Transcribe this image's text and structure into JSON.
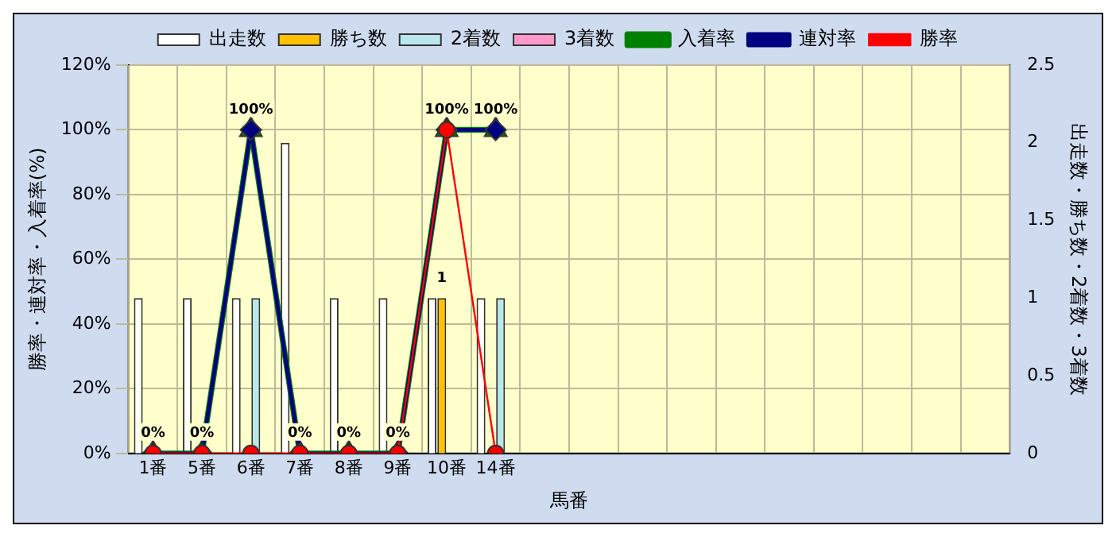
{
  "chart_data": {
    "type": "bar",
    "xlabel": "馬番",
    "ylabel": "勝率・連対率・入着率(%)",
    "y2label": "出走数・勝ち数・2着数・3着数",
    "categories": [
      "1番",
      "5番",
      "6番",
      "7番",
      "8番",
      "9番",
      "10番",
      "14番",
      null,
      null,
      null,
      null,
      null,
      null,
      null,
      null,
      null,
      null
    ],
    "ylim": [
      0,
      120
    ],
    "yticks": [
      {
        "value": 0,
        "label": "0%"
      },
      {
        "value": 20,
        "label": "20%"
      },
      {
        "value": 40,
        "label": "40%"
      },
      {
        "value": 60,
        "label": "60%"
      },
      {
        "value": 80,
        "label": "80%"
      },
      {
        "value": 100,
        "label": "100%"
      },
      {
        "value": 120,
        "label": "120%"
      }
    ],
    "y2lim": [
      0,
      2.5
    ],
    "y2ticks": [
      0,
      0.5,
      1,
      1.5,
      2,
      2.5
    ],
    "grid": true,
    "legend": "top",
    "series": [
      {
        "name": "出走数",
        "axis": "y2",
        "color": "#ffffff",
        "values": [
          1,
          1,
          1,
          2,
          1,
          1,
          1,
          1,
          null,
          null,
          null,
          null,
          null,
          null,
          null,
          null,
          null,
          null
        ]
      },
      {
        "name": "勝ち数",
        "axis": "y2",
        "color": "#ffc000",
        "values": [
          0,
          0,
          0,
          0,
          0,
          0,
          1,
          0,
          null,
          null,
          null,
          null,
          null,
          null,
          null,
          null,
          null,
          null
        ],
        "value_labels": [
          null,
          null,
          null,
          null,
          null,
          null,
          "1",
          null,
          null,
          null,
          null,
          null,
          null,
          null,
          null,
          null,
          null,
          null
        ]
      },
      {
        "name": "2着数",
        "axis": "y2",
        "color": "#b8e8ee",
        "values": [
          0,
          0,
          1,
          0,
          0,
          0,
          0,
          1,
          null,
          null,
          null,
          null,
          null,
          null,
          null,
          null,
          null,
          null
        ]
      },
      {
        "name": "3着数",
        "axis": "y2",
        "color": "#ff99cc",
        "values": [
          0,
          0,
          0,
          0,
          0,
          0,
          0,
          0,
          null,
          null,
          null,
          null,
          null,
          null,
          null,
          null,
          null,
          null
        ]
      },
      {
        "name": "入着率",
        "type": "line",
        "marker": "triangle",
        "color": "#008000",
        "values": [
          0,
          0,
          100,
          0,
          0,
          0,
          100,
          100,
          null,
          null,
          null,
          null,
          null,
          null,
          null,
          null,
          null,
          null
        ],
        "value_labels": [
          "0%",
          "0%",
          "100%",
          "0%",
          "0%",
          "0%",
          "100%",
          "100%",
          null,
          null,
          null,
          null,
          null,
          null,
          null,
          null,
          null,
          null
        ]
      },
      {
        "name": "連対率",
        "type": "line",
        "marker": "diamond",
        "color": "#000080",
        "values": [
          0,
          0,
          100,
          0,
          0,
          0,
          100,
          100,
          null,
          null,
          null,
          null,
          null,
          null,
          null,
          null,
          null,
          null
        ]
      },
      {
        "name": "勝率",
        "type": "line",
        "marker": "circle",
        "color": "#ff0000",
        "values": [
          0,
          0,
          0,
          0,
          0,
          0,
          100,
          0,
          null,
          null,
          null,
          null,
          null,
          null,
          null,
          null,
          null,
          null
        ]
      }
    ]
  }
}
